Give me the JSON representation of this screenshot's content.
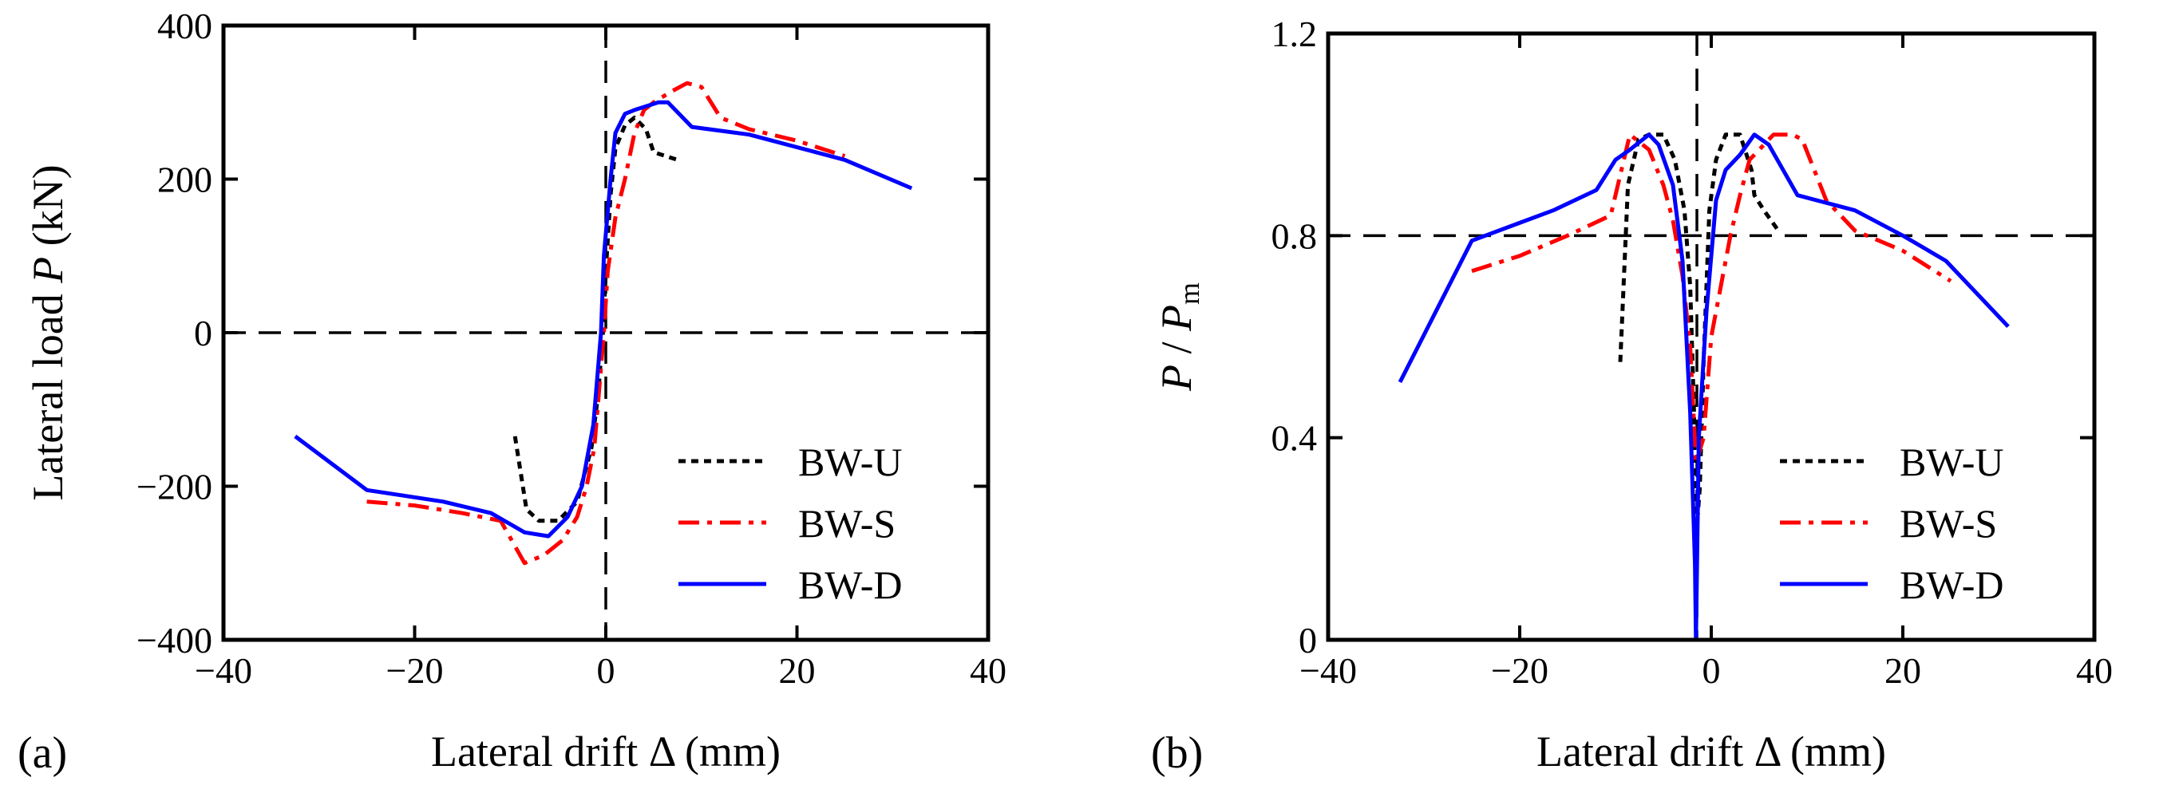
{
  "figure_id": "lateral-load-drift",
  "colors": {
    "BW-U": "#000000",
    "BW-S": "#ff0000",
    "BW-D": "#0000ff",
    "axis": "#000000",
    "reference": "#000000"
  },
  "chart_data": [
    {
      "panel_label": "(a)",
      "type": "line",
      "xlabel": "Lateral drift Δ (mm)",
      "ylabel_prefix": "Lateral load ",
      "ylabel_var": "P",
      "ylabel_suffix": " (kN)",
      "xlim": [
        -40,
        40
      ],
      "ylim": [
        -400,
        400
      ],
      "xticks": [
        -40,
        -20,
        0,
        20,
        40
      ],
      "yticks": [
        -400,
        -200,
        0,
        200,
        400
      ],
      "xtick_labels": [
        "−40",
        "−20",
        "0",
        "20",
        "40"
      ],
      "ytick_labels": [
        "−400",
        "−200",
        "0",
        "200",
        "400"
      ],
      "reference_lines": [
        {
          "orientation": "vertical",
          "value": 0,
          "style": "dashed"
        },
        {
          "orientation": "horizontal",
          "value": 0,
          "style": "dashed"
        }
      ],
      "legend_location": "lower-right",
      "series": [
        {
          "name": "BW-U",
          "style": "dotted",
          "points": [
            [
              -9.5,
              -135
            ],
            [
              -8.3,
              -230
            ],
            [
              -7,
              -245
            ],
            [
              -5,
              -245
            ],
            [
              -3,
              -220
            ],
            [
              -1.5,
              -150
            ],
            [
              -0.8,
              -80
            ],
            [
              -0.3,
              0
            ],
            [
              0,
              80
            ],
            [
              0.5,
              180
            ],
            [
              1,
              240
            ],
            [
              2,
              270
            ],
            [
              3,
              280
            ],
            [
              4.2,
              265
            ],
            [
              5,
              235
            ],
            [
              7.5,
              225
            ]
          ]
        },
        {
          "name": "BW-S",
          "style": "dashdot",
          "points": [
            [
              -25,
              -220
            ],
            [
              -20,
              -225
            ],
            [
              -15,
              -235
            ],
            [
              -11,
              -245
            ],
            [
              -8.5,
              -300
            ],
            [
              -6.5,
              -290
            ],
            [
              -4.5,
              -270
            ],
            [
              -3,
              -240
            ],
            [
              -2,
              -200
            ],
            [
              -1.2,
              -150
            ],
            [
              -0.6,
              -60
            ],
            [
              -0.2,
              0
            ],
            [
              0.2,
              80
            ],
            [
              1,
              150
            ],
            [
              2,
              200
            ],
            [
              3,
              260
            ],
            [
              4,
              290
            ],
            [
              5,
              300
            ],
            [
              7,
              315
            ],
            [
              8.5,
              325
            ],
            [
              10,
              320
            ],
            [
              12,
              280
            ],
            [
              15,
              265
            ],
            [
              20,
              250
            ],
            [
              25,
              230
            ]
          ]
        },
        {
          "name": "BW-D",
          "style": "solid",
          "points": [
            [
              -32.5,
              -135
            ],
            [
              -25,
              -205
            ],
            [
              -17,
              -220
            ],
            [
              -12,
              -235
            ],
            [
              -8.5,
              -260
            ],
            [
              -6,
              -265
            ],
            [
              -4,
              -240
            ],
            [
              -2.5,
              -200
            ],
            [
              -1.3,
              -120
            ],
            [
              -0.5,
              0
            ],
            [
              -0.2,
              100
            ],
            [
              0.5,
              200
            ],
            [
              1,
              260
            ],
            [
              2,
              285
            ],
            [
              3,
              290
            ],
            [
              5.5,
              300
            ],
            [
              6.5,
              300
            ],
            [
              9,
              268
            ],
            [
              15,
              258
            ],
            [
              25,
              225
            ],
            [
              32,
              188
            ]
          ]
        }
      ]
    },
    {
      "panel_label": "(b)",
      "type": "line",
      "xlabel": "Lateral drift Δ (mm)",
      "ylabel_var": "P",
      "ylabel_sep": " / ",
      "ylabel_var2": "P",
      "ylabel_sub": "m",
      "xlim": [
        -40,
        40
      ],
      "ylim": [
        0,
        1.2
      ],
      "xticks": [
        -40,
        -20,
        0,
        20,
        40
      ],
      "yticks": [
        0,
        0.4,
        0.8,
        1.2
      ],
      "xtick_labels": [
        "−40",
        "−20",
        "0",
        "20",
        "40"
      ],
      "ytick_labels": [
        "0",
        "0.4",
        "0.8",
        "1.2"
      ],
      "reference_lines": [
        {
          "orientation": "vertical",
          "value": -1.5,
          "style": "dashed"
        },
        {
          "orientation": "horizontal",
          "value": 0.8,
          "style": "dashed"
        }
      ],
      "legend_location": "lower-right",
      "series": [
        {
          "name": "BW-U",
          "style": "dotted",
          "points": [
            [
              -9.5,
              0.55
            ],
            [
              -8.7,
              0.9
            ],
            [
              -7.6,
              0.99
            ],
            [
              -6.5,
              1.0
            ],
            [
              -5,
              1.0
            ],
            [
              -3.8,
              0.95
            ],
            [
              -2.8,
              0.85
            ],
            [
              -2.2,
              0.7
            ],
            [
              -1.8,
              0.45
            ],
            [
              -1.6,
              0.2
            ],
            [
              -1.2,
              0.3
            ],
            [
              -0.8,
              0.55
            ],
            [
              -0.2,
              0.85
            ],
            [
              0.5,
              0.95
            ],
            [
              1.5,
              1.0
            ],
            [
              3,
              1.0
            ],
            [
              4.2,
              0.93
            ],
            [
              4.5,
              0.88
            ],
            [
              5.5,
              0.85
            ],
            [
              7,
              0.81
            ]
          ]
        },
        {
          "name": "BW-S",
          "style": "dashdot",
          "points": [
            [
              -25,
              0.73
            ],
            [
              -20,
              0.76
            ],
            [
              -15,
              0.8
            ],
            [
              -10.5,
              0.84
            ],
            [
              -8.5,
              1.0
            ],
            [
              -6.5,
              0.97
            ],
            [
              -5,
              0.9
            ],
            [
              -4,
              0.83
            ],
            [
              -3,
              0.72
            ],
            [
              -2.2,
              0.58
            ],
            [
              -1.6,
              0.35
            ],
            [
              -0.8,
              0.4
            ],
            [
              0,
              0.6
            ],
            [
              1,
              0.7
            ],
            [
              2,
              0.8
            ],
            [
              3,
              0.88
            ],
            [
              4,
              0.95
            ],
            [
              5,
              0.97
            ],
            [
              6.5,
              1.0
            ],
            [
              8.5,
              1.0
            ],
            [
              9.5,
              0.99
            ],
            [
              12,
              0.87
            ],
            [
              15,
              0.81
            ],
            [
              20,
              0.77
            ],
            [
              25,
              0.71
            ]
          ]
        },
        {
          "name": "BW-D",
          "style": "solid",
          "points": [
            [
              -32.5,
              0.51
            ],
            [
              -25,
              0.79
            ],
            [
              -16.5,
              0.85
            ],
            [
              -12,
              0.89
            ],
            [
              -10,
              0.95
            ],
            [
              -8.5,
              0.97
            ],
            [
              -6.5,
              1.0
            ],
            [
              -5.5,
              0.98
            ],
            [
              -4,
              0.9
            ],
            [
              -3,
              0.75
            ],
            [
              -2.2,
              0.45
            ],
            [
              -1.7,
              0.15
            ],
            [
              -1.6,
              0.0
            ],
            [
              -1.3,
              0.4
            ],
            [
              -0.5,
              0.65
            ],
            [
              0.5,
              0.87
            ],
            [
              1.5,
              0.93
            ],
            [
              3,
              0.96
            ],
            [
              4.5,
              1.0
            ],
            [
              6,
              0.98
            ],
            [
              9,
              0.88
            ],
            [
              15,
              0.85
            ],
            [
              20,
              0.8
            ],
            [
              24.5,
              0.75
            ],
            [
              31,
              0.62
            ]
          ]
        }
      ]
    }
  ]
}
